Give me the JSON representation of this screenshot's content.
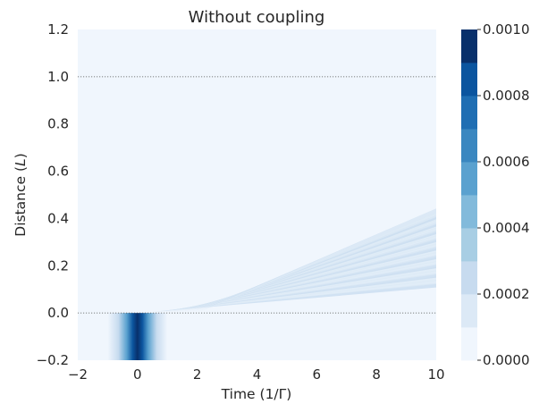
{
  "chart_data": {
    "type": "heatmap",
    "title": "Without coupling",
    "xlabel": "Time (1/Γ)",
    "ylabel": "Distance (",
    "ylabel_italic": "L",
    "ylabel_close": ")",
    "xlim": [
      -2,
      10
    ],
    "ylim": [
      -0.2,
      1.2
    ],
    "x_ticks": [
      -2,
      0,
      2,
      4,
      6,
      8,
      10
    ],
    "x_tick_labels": [
      "−2",
      "0",
      "2",
      "4",
      "6",
      "8",
      "10"
    ],
    "y_ticks": [
      -0.2,
      0.0,
      0.2,
      0.4,
      0.6,
      0.8,
      1.0,
      1.2
    ],
    "y_tick_labels": [
      "−0.2",
      "0.0",
      "0.2",
      "0.4",
      "0.6",
      "0.8",
      "1.0",
      "1.2"
    ],
    "reference_lines_y": [
      0.0,
      1.0
    ],
    "colormap": "Blues",
    "colorbar": {
      "levels": [
        0.0,
        0.0001,
        0.0002,
        0.0003,
        0.0004,
        0.0005,
        0.0006,
        0.0007,
        0.0008,
        0.0009,
        0.001
      ],
      "tick_values": [
        0.0,
        0.0002,
        0.0004,
        0.0006,
        0.0008,
        0.001
      ],
      "tick_labels": [
        "0.0000",
        "0.0002",
        "0.0004",
        "0.0006",
        "0.0008",
        "0.0010"
      ],
      "colors": [
        "#f0f6fd",
        "#dce9f6",
        "#c7dbef",
        "#a8cee4",
        "#82badb",
        "#5aa1cf",
        "#3a87c0",
        "#1f6eb3",
        "#0b559f",
        "#08306b"
      ]
    },
    "features": {
      "source_pulse": {
        "x_range": [
          -1,
          1
        ],
        "y_range": [
          -0.2,
          0.0
        ],
        "peak_value": 0.001
      },
      "wavefront_fringes": {
        "x_range": [
          0.5,
          10
        ],
        "y_range": [
          0.0,
          0.43
        ],
        "value_range": [
          0.0001,
          0.0002
        ]
      }
    },
    "grid": false
  }
}
